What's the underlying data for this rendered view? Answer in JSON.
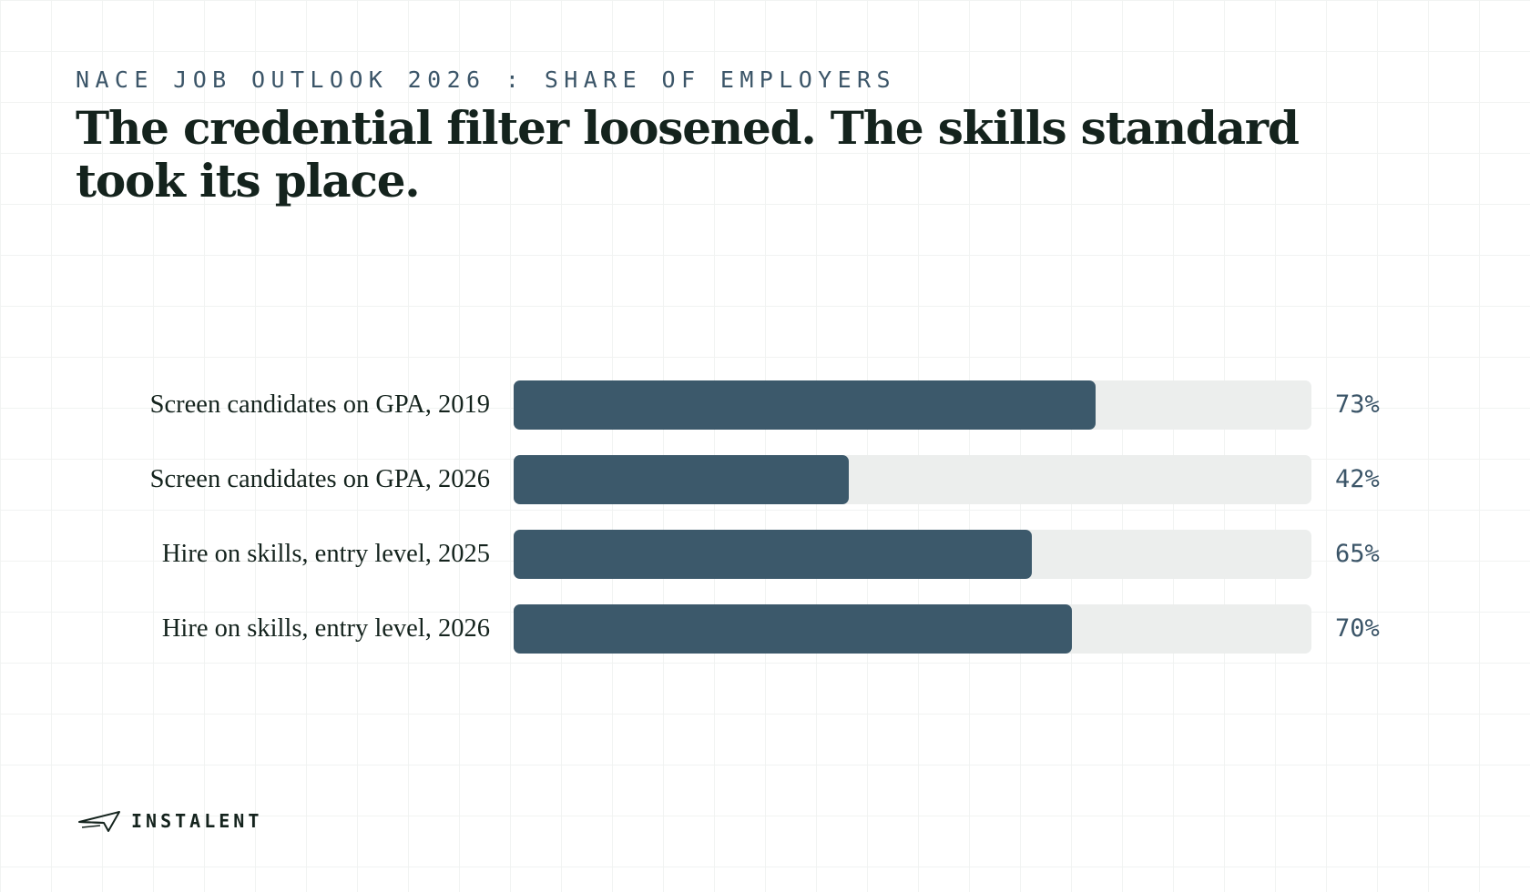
{
  "header": {
    "eyebrow": "NACE JOB OUTLOOK 2026 : SHARE OF EMPLOYERS",
    "headline": "The credential filter loosened. The skills standard took its place."
  },
  "chart_data": {
    "type": "bar",
    "orientation": "horizontal",
    "categories": [
      "Screen candidates on GPA, 2019",
      "Screen candidates on GPA, 2026",
      "Hire on skills, entry level, 2025",
      "Hire on skills, entry level, 2026"
    ],
    "values": [
      73,
      42,
      65,
      70
    ],
    "value_labels": [
      "73%",
      "42%",
      "65%",
      "70%"
    ],
    "unit": "%",
    "xlim": [
      0,
      100
    ],
    "grid": false,
    "colors": {
      "bar": "#3c596b",
      "track": "#eceeed",
      "value": "#3b5568"
    }
  },
  "brand": {
    "name": "INSTALENT",
    "logo_icon": "paper-plane-icon"
  }
}
